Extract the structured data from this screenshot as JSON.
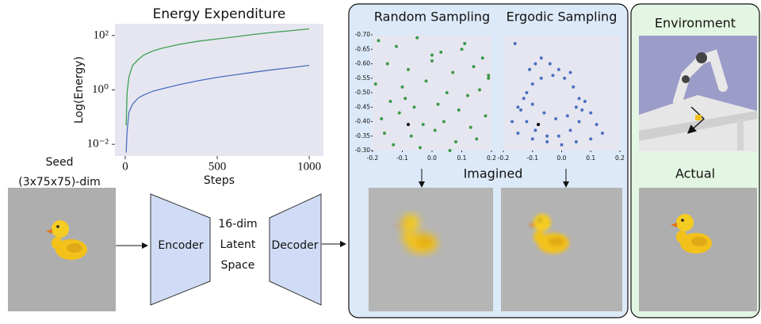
{
  "chart_data": [
    {
      "type": "line",
      "title": "Energy Expenditure",
      "ylabel": "Log(Energy)",
      "xlabel": "Steps",
      "yscale": "log",
      "x": [
        5,
        10,
        20,
        40,
        70,
        100,
        150,
        200,
        300,
        400,
        500,
        600,
        700,
        800,
        900,
        1000
      ],
      "series": [
        {
          "color": "#3ca050",
          "values": [
            0.05,
            0.8,
            3,
            8,
            13,
            19,
            27,
            34,
            48,
            62,
            75,
            90,
            110,
            130,
            150,
            175
          ]
        },
        {
          "color": "#4a6fc0",
          "values": [
            0.005,
            0.03,
            0.15,
            0.3,
            0.5,
            0.65,
            0.9,
            1.1,
            1.6,
            2.2,
            2.9,
            3.6,
            4.5,
            5.5,
            6.6,
            8
          ]
        }
      ],
      "xlim": [
        -56,
        1077
      ],
      "ylim": [
        0.0037,
        270
      ],
      "xticks": [
        0,
        500,
        1000
      ],
      "yticks": [
        {
          "value": 0.01,
          "label": "10⁻²"
        },
        {
          "value": 1,
          "label": "10⁰"
        },
        {
          "value": 100,
          "label": "10²"
        }
      ]
    },
    {
      "type": "scatter",
      "title": "Random Sampling",
      "series": [
        {
          "color": "#3c9a4a",
          "x": [
            -0.18,
            -0.12,
            -0.05,
            0.03,
            0.11,
            0.17,
            -0.15,
            -0.08,
            0.0,
            0.07,
            0.14,
            0.19,
            -0.19,
            -0.1,
            -0.02,
            0.05,
            0.12,
            0.16,
            -0.14,
            -0.06,
            0.02,
            0.09,
            0.18,
            -0.17,
            -0.11,
            -0.03,
            0.04,
            0.13,
            -0.16,
            -0.07,
            0.01,
            0.08,
            0.15,
            -0.13,
            -0.04,
            0.06,
            0.1,
            0.19,
            -0.09,
            0.0
          ],
          "values": [
            -0.68,
            -0.66,
            -0.69,
            -0.64,
            -0.67,
            -0.62,
            -0.6,
            -0.58,
            -0.61,
            -0.57,
            -0.59,
            -0.55,
            -0.53,
            -0.52,
            -0.54,
            -0.5,
            -0.49,
            -0.51,
            -0.47,
            -0.45,
            -0.46,
            -0.44,
            -0.42,
            -0.41,
            -0.43,
            -0.39,
            -0.4,
            -0.38,
            -0.36,
            -0.35,
            -0.37,
            -0.33,
            -0.34,
            -0.32,
            -0.31,
            -0.3,
            -0.65,
            -0.56,
            -0.48,
            -0.63
          ]
        },
        {
          "color": "#000000",
          "x": [
            -0.08
          ],
          "values": [
            -0.39
          ]
        }
      ],
      "xlim": [
        -0.2,
        0.2
      ],
      "ylim": [
        -0.7,
        -0.3
      ],
      "y_inverted": true,
      "xticks": [
        -0.2,
        -0.1,
        {
          "value": 0,
          "label": "0.0"
        },
        0.1,
        0.2
      ],
      "yticks": [
        {
          "value": -0.7,
          "label": "-0.70"
        },
        -0.65,
        {
          "value": -0.6,
          "label": "-0.60"
        },
        -0.55,
        {
          "value": -0.5,
          "label": "-0.50"
        },
        -0.45,
        {
          "value": -0.4,
          "label": "-0.40"
        },
        -0.35,
        {
          "value": -0.3,
          "label": "-0.30"
        }
      ]
    },
    {
      "type": "scatter",
      "title": "Ergodic Sampling",
      "series": [
        {
          "color": "#4a6fc0",
          "x": [
            -0.12,
            -0.1,
            -0.07,
            -0.03,
            0.01,
            0.04,
            0.06,
            0.07,
            0.06,
            0.03,
            -0.01,
            -0.05,
            -0.09,
            -0.12,
            -0.14,
            -0.13,
            -0.1,
            -0.06,
            -0.02,
            0.02,
            0.05,
            0.08,
            0.1,
            0.12,
            0.14,
            0.1,
            0.05,
            0.0,
            -0.05,
            -0.1,
            -0.15,
            -0.17,
            -0.15,
            -0.11,
            -0.09,
            -0.07,
            -0.04,
            -0.01,
            0.03,
            -0.16
          ],
          "values": [
            -0.5,
            -0.53,
            -0.55,
            -0.56,
            -0.55,
            -0.52,
            -0.48,
            -0.44,
            -0.4,
            -0.37,
            -0.35,
            -0.35,
            -0.37,
            -0.4,
            -0.44,
            -0.48,
            -0.46,
            -0.43,
            -0.41,
            -0.42,
            -0.45,
            -0.47,
            -0.43,
            -0.39,
            -0.36,
            -0.34,
            -0.33,
            -0.32,
            -0.33,
            -0.34,
            -0.36,
            -0.4,
            -0.45,
            -0.58,
            -0.6,
            -0.62,
            -0.6,
            -0.58,
            -0.57,
            -0.67
          ]
        },
        {
          "color": "#000000",
          "x": [
            -0.08
          ],
          "values": [
            -0.39
          ]
        }
      ],
      "xlim": [
        -0.2,
        0.2
      ],
      "ylim": [
        -0.7,
        -0.3
      ],
      "y_inverted": true,
      "xticks": [
        -0.2,
        -0.1,
        {
          "value": 0,
          "label": "0.0"
        },
        0.1,
        0.2
      ]
    }
  ],
  "labels": {
    "seed": "Seed",
    "seed_dim": "(3x75x75)-dim",
    "encoder": "Encoder",
    "latent": [
      "16-dim",
      "Latent",
      "Space"
    ],
    "decoder": "Decoder",
    "imagined": "Imagined",
    "environment": "Environment",
    "actual": "Actual"
  }
}
